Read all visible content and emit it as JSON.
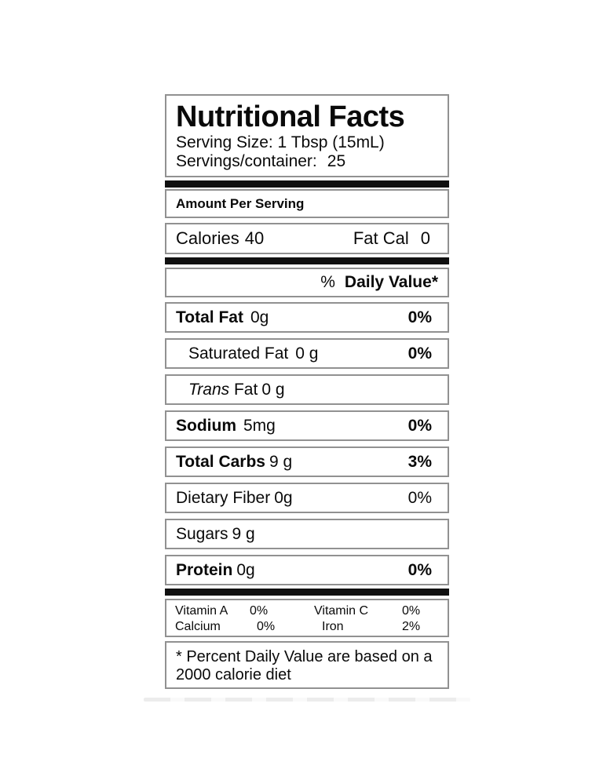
{
  "label": {
    "title": "Nutritional Facts",
    "serving_size": "Serving Size: 1 Tbsp (15mL)",
    "servings_per_container_label": "Servings/container:",
    "servings_per_container_value": "25",
    "amount_per_serving": "Amount Per Serving",
    "calories": {
      "label": "Calories",
      "value": "40"
    },
    "fat_calories": {
      "label": "Fat Cal",
      "value": "0"
    },
    "daily_value_header": {
      "percent": "%",
      "label": "Daily Value*"
    },
    "rows": [
      {
        "name": "Total Fat",
        "amount": "0g",
        "dv": "0%"
      },
      {
        "name": "Saturated Fat",
        "amount": "0 g",
        "dv": "0%"
      },
      {
        "name_italic": "Trans",
        "name": "Fat",
        "amount": "0 g",
        "dv": ""
      },
      {
        "name": "Sodium",
        "amount": "5mg",
        "dv": "0%"
      },
      {
        "name": "Total Carbs",
        "amount": "9 g",
        "dv": "3%"
      },
      {
        "name": "Dietary Fiber",
        "amount": "0g",
        "dv": "0%"
      },
      {
        "name": "Sugars",
        "amount": "9 g",
        "dv": ""
      },
      {
        "name": "Protein",
        "amount": "0g",
        "dv": "0%"
      }
    ],
    "micronutrients": [
      {
        "label": "Vitamin A",
        "value": "0%"
      },
      {
        "label": "Vitamin C",
        "value": "0%"
      },
      {
        "label": "Calcium",
        "value": "0%"
      },
      {
        "label": "Iron",
        "value": "2%"
      }
    ],
    "footnote_line1": "* Percent Daily Value are based on a",
    "footnote_line2": "2000 calorie diet",
    "colors": {
      "border": "#919191",
      "bar": "#101010",
      "text": "#0a0a0a"
    }
  }
}
